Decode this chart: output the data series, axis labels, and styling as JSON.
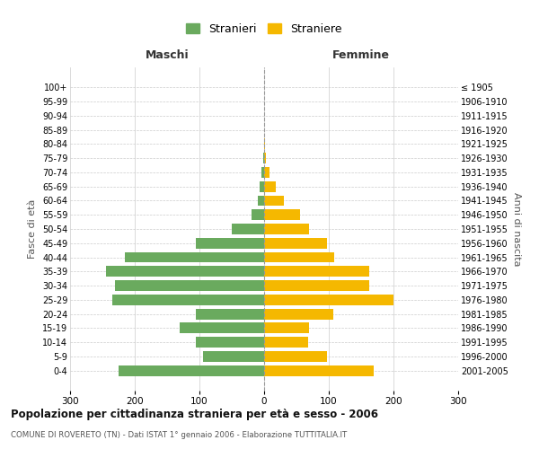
{
  "age_groups": [
    "100+",
    "95-99",
    "90-94",
    "85-89",
    "80-84",
    "75-79",
    "70-74",
    "65-69",
    "60-64",
    "55-59",
    "50-54",
    "45-49",
    "40-44",
    "35-39",
    "30-34",
    "25-29",
    "20-24",
    "15-19",
    "10-14",
    "5-9",
    "0-4"
  ],
  "birth_years": [
    "≤ 1905",
    "1906-1910",
    "1911-1915",
    "1916-1920",
    "1921-1925",
    "1926-1930",
    "1931-1935",
    "1936-1940",
    "1941-1945",
    "1946-1950",
    "1951-1955",
    "1956-1960",
    "1961-1965",
    "1966-1970",
    "1971-1975",
    "1976-1980",
    "1981-1985",
    "1986-1990",
    "1991-1995",
    "1996-2000",
    "2001-2005"
  ],
  "males": [
    0,
    0,
    0,
    0,
    0,
    2,
    4,
    7,
    10,
    20,
    50,
    105,
    215,
    245,
    230,
    235,
    105,
    130,
    105,
    95,
    225
  ],
  "females": [
    0,
    0,
    0,
    0,
    1,
    3,
    8,
    18,
    30,
    55,
    70,
    97,
    108,
    162,
    162,
    200,
    107,
    70,
    68,
    97,
    170
  ],
  "male_color": "#6aaa5e",
  "female_color": "#f5b800",
  "background_color": "#ffffff",
  "grid_color": "#cccccc",
  "title": "Popolazione per cittadinanza straniera per età e sesso - 2006",
  "subtitle": "COMUNE DI ROVERETO (TN) - Dati ISTAT 1° gennaio 2006 - Elaborazione TUTTITALIA.IT",
  "xlabel_left": "Maschi",
  "xlabel_right": "Femmine",
  "ylabel_left": "Fasce di età",
  "ylabel_right": "Anni di nascita",
  "legend_males": "Stranieri",
  "legend_females": "Straniere",
  "xlim": 300,
  "bar_height": 0.75
}
